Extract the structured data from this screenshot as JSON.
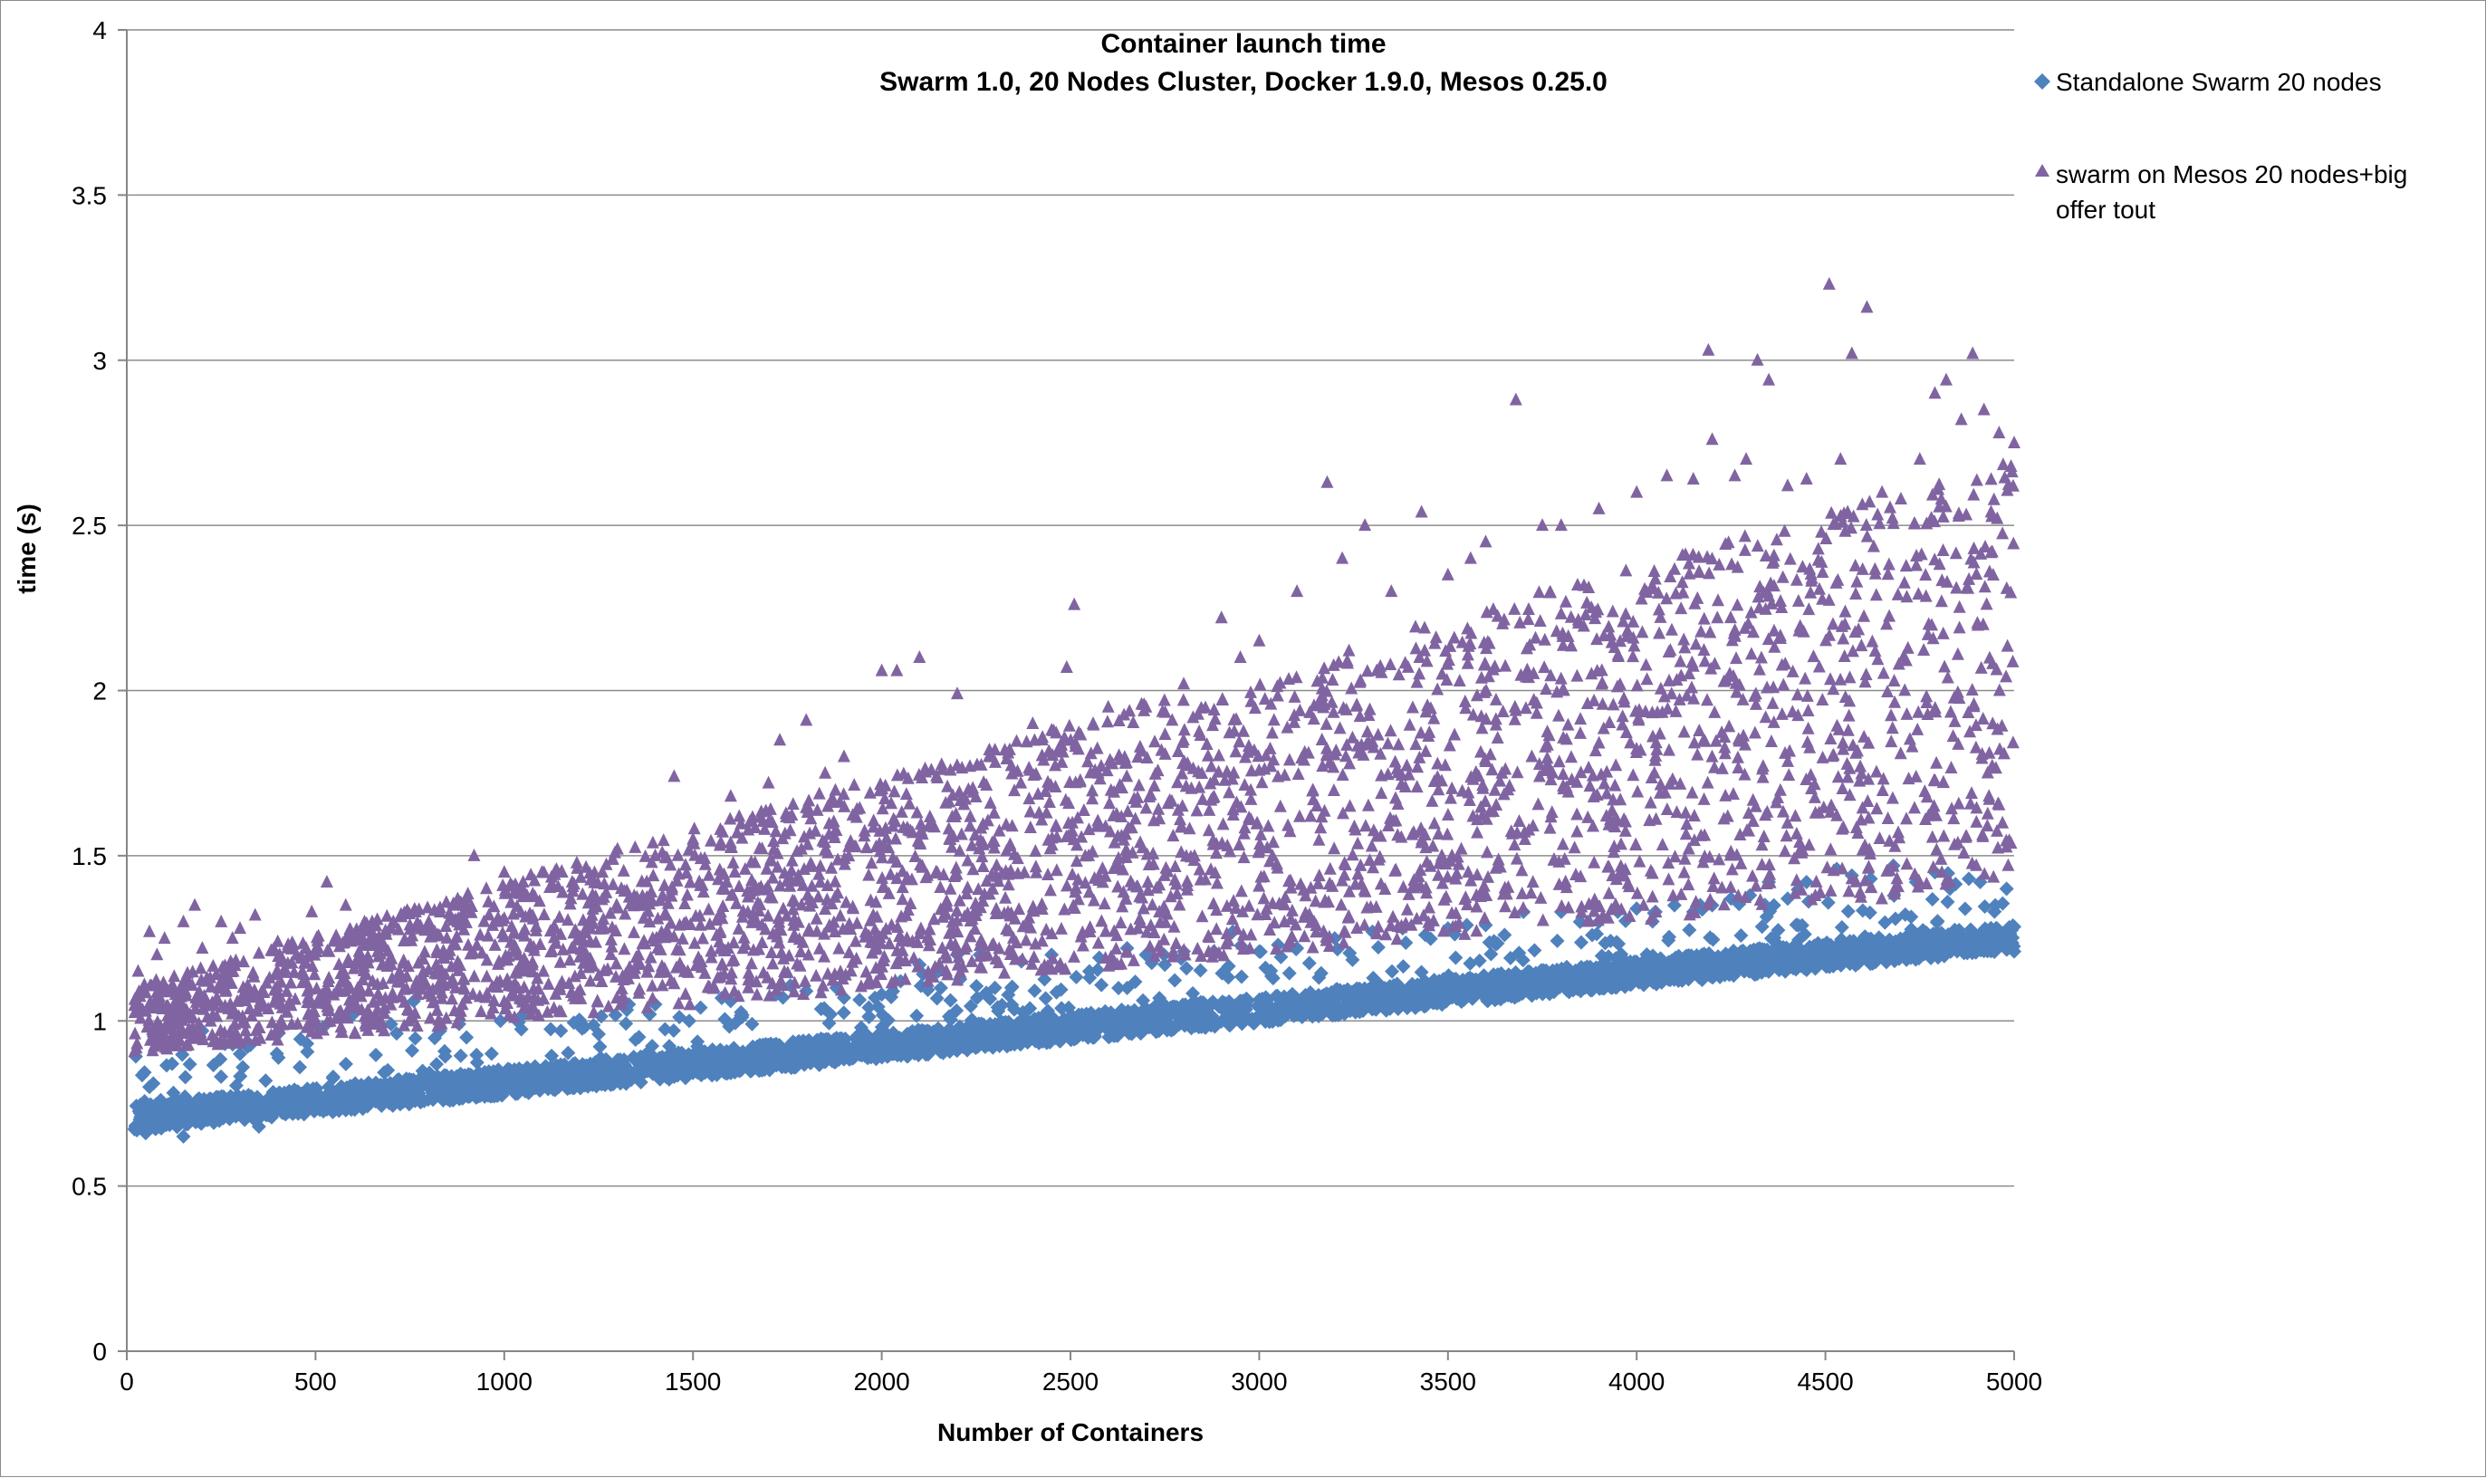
{
  "chart_data": {
    "type": "scatter",
    "title": "Container launch time",
    "subtitle": "Swarm 1.0, 20 Nodes Cluster, Docker 1.9.0, Mesos 0.25.0",
    "xlabel": "Number of Containers",
    "ylabel": "time (s)",
    "xlim": [
      0,
      5000
    ],
    "ylim": [
      0,
      4
    ],
    "x_ticks": [
      "0",
      "500",
      "1000",
      "1500",
      "2000",
      "2500",
      "3000",
      "3500",
      "4000",
      "4500",
      "5000"
    ],
    "y_ticks": [
      "0",
      "0.5",
      "1",
      "1.5",
      "2",
      "2.5",
      "3",
      "3.5",
      "4"
    ],
    "grid": "horizontal",
    "legend_position": "right",
    "series": [
      {
        "name": "Standalone Swarm 20 nodes",
        "marker": "diamond",
        "color": "#4f81bd",
        "trend": {
          "x": [
            0,
            5000
          ],
          "y": [
            0.7,
            1.25
          ]
        },
        "points": [
          [
            50,
            0.66
          ],
          [
            60,
            0.8
          ],
          [
            90,
            0.76
          ],
          [
            120,
            0.87
          ],
          [
            150,
            0.65
          ],
          [
            200,
            0.97
          ],
          [
            260,
            0.93
          ],
          [
            300,
            0.9
          ],
          [
            350,
            0.68
          ],
          [
            400,
            0.96
          ],
          [
            520,
            0.98
          ],
          [
            600,
            1.02
          ],
          [
            700,
            0.99
          ],
          [
            760,
            1.06
          ],
          [
            830,
            0.97
          ],
          [
            900,
            0.95
          ],
          [
            990,
            1.0
          ],
          [
            1050,
            1.02
          ],
          [
            1150,
            0.97
          ],
          [
            1250,
            0.96
          ],
          [
            1330,
            1.05
          ],
          [
            1400,
            1.05
          ],
          [
            1490,
            1.0
          ],
          [
            1520,
            1.04
          ],
          [
            1600,
            1.06
          ],
          [
            1720,
            1.08
          ],
          [
            1800,
            1.09
          ],
          [
            1880,
            1.1
          ],
          [
            1900,
            1.07
          ],
          [
            2000,
            1.08
          ],
          [
            2050,
            1.12
          ],
          [
            2100,
            1.17
          ],
          [
            2150,
            1.15
          ],
          [
            2200,
            1.2
          ],
          [
            2260,
            1.2
          ],
          [
            2300,
            1.1
          ],
          [
            2370,
            1.18
          ],
          [
            2450,
            1.2
          ],
          [
            2550,
            1.15
          ],
          [
            2650,
            1.22
          ],
          [
            2700,
            1.2
          ],
          [
            2750,
            1.17
          ],
          [
            2800,
            1.21
          ],
          [
            2880,
            1.21
          ],
          [
            2930,
            1.27
          ],
          [
            3000,
            1.21
          ],
          [
            3050,
            1.23
          ],
          [
            3100,
            1.22
          ],
          [
            3200,
            1.25
          ],
          [
            3300,
            1.27
          ],
          [
            3380,
            1.28
          ],
          [
            3440,
            1.26
          ],
          [
            3500,
            1.28
          ],
          [
            3550,
            1.29
          ],
          [
            3600,
            1.29
          ],
          [
            3650,
            1.26
          ],
          [
            3700,
            1.33
          ],
          [
            3800,
            1.33
          ],
          [
            3850,
            1.3
          ],
          [
            3900,
            1.3
          ],
          [
            3950,
            1.33
          ],
          [
            4000,
            1.34
          ],
          [
            4050,
            1.33
          ],
          [
            4100,
            1.35
          ],
          [
            4150,
            1.33
          ],
          [
            4200,
            1.35
          ],
          [
            4250,
            1.37
          ],
          [
            4300,
            1.38
          ],
          [
            4350,
            1.42
          ],
          [
            4400,
            1.37
          ],
          [
            4450,
            1.42
          ],
          [
            4530,
            1.46
          ],
          [
            4570,
            1.44
          ],
          [
            4620,
            1.43
          ],
          [
            4680,
            1.47
          ],
          [
            4740,
            1.42
          ],
          [
            4790,
            1.45
          ],
          [
            4830,
            1.4
          ],
          [
            4880,
            1.43
          ],
          [
            4910,
            1.42
          ],
          [
            4950,
            1.35
          ],
          [
            4980,
            1.4
          ],
          [
            5000,
            1.21
          ]
        ]
      },
      {
        "name": "swarm on Mesos 20 nodes+big offer tout",
        "marker": "triangle",
        "color": "#8064a2",
        "trend": {
          "x": [
            0,
            5000
          ],
          "y": [
            1.0,
            2.05
          ]
        },
        "points": [
          [
            30,
            1.15
          ],
          [
            60,
            1.27
          ],
          [
            80,
            1.2
          ],
          [
            100,
            1.25
          ],
          [
            150,
            1.3
          ],
          [
            180,
            1.35
          ],
          [
            200,
            1.22
          ],
          [
            250,
            1.3
          ],
          [
            280,
            1.25
          ],
          [
            300,
            1.28
          ],
          [
            340,
            1.32
          ],
          [
            400,
            1.24
          ],
          [
            450,
            1.2
          ],
          [
            490,
            1.33
          ],
          [
            530,
            1.42
          ],
          [
            580,
            1.35
          ],
          [
            650,
            1.3
          ],
          [
            700,
            1.28
          ],
          [
            800,
            1.3
          ],
          [
            870,
            1.35
          ],
          [
            920,
            1.5
          ],
          [
            1000,
            1.45
          ],
          [
            1050,
            1.42
          ],
          [
            1100,
            1.45
          ],
          [
            1180,
            1.42
          ],
          [
            1260,
            1.45
          ],
          [
            1300,
            1.52
          ],
          [
            1400,
            1.5
          ],
          [
            1450,
            1.74
          ],
          [
            1500,
            1.55
          ],
          [
            1600,
            1.68
          ],
          [
            1700,
            1.72
          ],
          [
            1730,
            1.85
          ],
          [
            1800,
            1.91
          ],
          [
            1850,
            1.75
          ],
          [
            1900,
            1.8
          ],
          [
            2000,
            2.06
          ],
          [
            2040,
            2.06
          ],
          [
            2100,
            2.1
          ],
          [
            2200,
            1.99
          ],
          [
            2300,
            1.82
          ],
          [
            2400,
            1.9
          ],
          [
            2450,
            1.88
          ],
          [
            2490,
            2.07
          ],
          [
            2510,
            2.26
          ],
          [
            2560,
            1.9
          ],
          [
            2600,
            1.95
          ],
          [
            2700,
            1.95
          ],
          [
            2800,
            2.02
          ],
          [
            2900,
            2.22
          ],
          [
            2950,
            2.1
          ],
          [
            3000,
            2.15
          ],
          [
            3100,
            2.3
          ],
          [
            3180,
            2.63
          ],
          [
            3220,
            2.4
          ],
          [
            3280,
            2.5
          ],
          [
            3350,
            2.3
          ],
          [
            3430,
            2.54
          ],
          [
            3500,
            2.35
          ],
          [
            3560,
            2.4
          ],
          [
            3600,
            2.45
          ],
          [
            3680,
            2.88
          ],
          [
            3750,
            2.5
          ],
          [
            3800,
            2.5
          ],
          [
            3900,
            2.55
          ],
          [
            4000,
            2.6
          ],
          [
            4080,
            2.65
          ],
          [
            4150,
            2.64
          ],
          [
            4190,
            3.03
          ],
          [
            4200,
            2.76
          ],
          [
            4260,
            2.65
          ],
          [
            4290,
            2.7
          ],
          [
            4320,
            3.0
          ],
          [
            4350,
            2.94
          ],
          [
            4400,
            2.62
          ],
          [
            4450,
            2.64
          ],
          [
            4510,
            3.23
          ],
          [
            4540,
            2.7
          ],
          [
            4570,
            3.02
          ],
          [
            4610,
            3.16
          ],
          [
            4650,
            2.6
          ],
          [
            4700,
            2.58
          ],
          [
            4750,
            2.7
          ],
          [
            4790,
            2.9
          ],
          [
            4820,
            2.94
          ],
          [
            4860,
            2.82
          ],
          [
            4890,
            3.02
          ],
          [
            4920,
            2.85
          ],
          [
            4960,
            2.78
          ],
          [
            5000,
            2.75
          ]
        ]
      }
    ]
  }
}
